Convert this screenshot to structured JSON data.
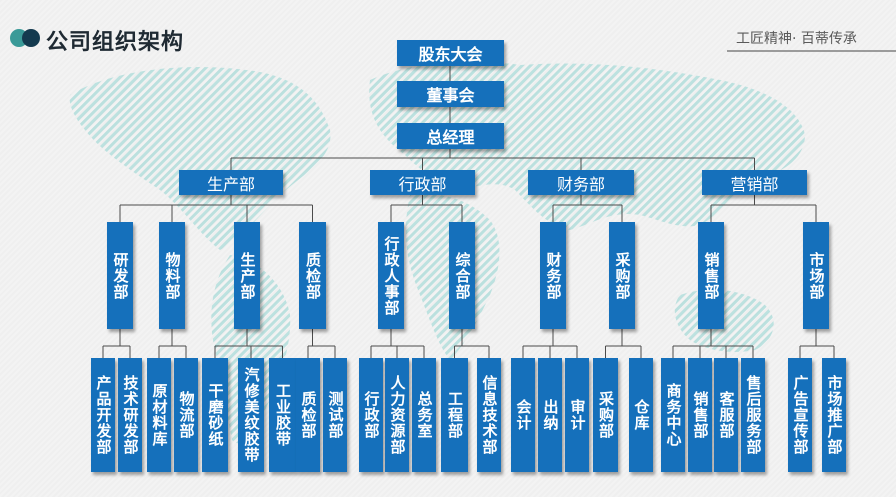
{
  "header": {
    "title": "公司组织架构",
    "slogan": "工匠精神· 百蒂传承"
  },
  "colors": {
    "box": "#1570bb",
    "accent_teal": "#3a9a98",
    "accent_dark": "#143a4f",
    "map": "#8fd3cf"
  },
  "top": [
    "股东大会",
    "董事会",
    "总经理"
  ],
  "divisions": [
    {
      "name": "生产部",
      "departments": [
        {
          "name": "研发部",
          "units": [
            "产品开发部",
            "技术研发部"
          ]
        },
        {
          "name": "物料部",
          "units": [
            "原材料库",
            "物流部"
          ]
        },
        {
          "name": "生产部",
          "units": [
            "干磨砂纸",
            "汽修美纹胶带",
            "工业胶带"
          ]
        },
        {
          "name": "质检部",
          "units": [
            "质检部",
            "测试部"
          ]
        }
      ]
    },
    {
      "name": "行政部",
      "departments": [
        {
          "name": "行政人事部",
          "units": [
            "行政部",
            "人力资源部",
            "总务室"
          ]
        },
        {
          "name": "综合部",
          "units": [
            "工程部",
            "信息技术部"
          ]
        }
      ]
    },
    {
      "name": "财务部",
      "departments": [
        {
          "name": "财务部",
          "units": [
            "会计",
            "出纳",
            "审计"
          ]
        },
        {
          "name": "采购部",
          "units": [
            "采购部",
            "仓库"
          ]
        }
      ]
    },
    {
      "name": "营销部",
      "departments": [
        {
          "name": "销售部",
          "units": [
            "商务中心",
            "销售部",
            "客服部",
            "售后服务部"
          ]
        },
        {
          "name": "市场部",
          "units": [
            "广告宣传部",
            "市场推广部"
          ]
        }
      ]
    }
  ]
}
